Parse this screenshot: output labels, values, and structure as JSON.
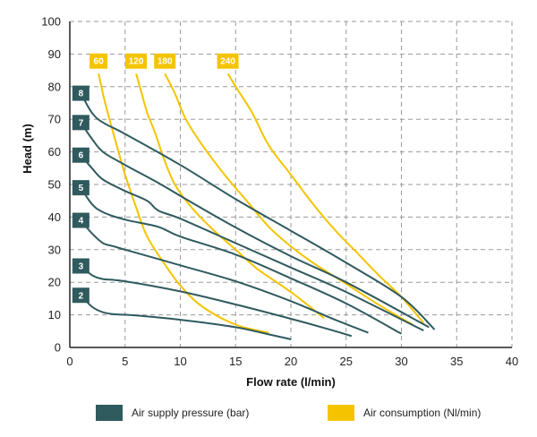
{
  "chart_data": {
    "type": "line",
    "title": "",
    "xlabel": "Flow rate (l/min)",
    "ylabel": "Head (m)",
    "xlim": [
      0,
      40
    ],
    "ylim": [
      0,
      100
    ],
    "xticks": [
      0,
      5,
      10,
      15,
      20,
      25,
      30,
      35,
      40
    ],
    "yticks": [
      0,
      10,
      20,
      30,
      40,
      50,
      60,
      70,
      80,
      90,
      100
    ],
    "grid": true,
    "grid_style": "dashed",
    "legend_position": "bottom",
    "colors": {
      "pressure": "#2f5a5e",
      "consumption": "#f5c400"
    },
    "legend": [
      {
        "label": "Air supply pressure (bar)",
        "color": "#2f5a5e"
      },
      {
        "label": "Air consumption (Nl/min)",
        "color": "#f5c400"
      }
    ],
    "pressure_series": [
      {
        "label": "2",
        "points": [
          [
            1,
            16
          ],
          [
            2,
            12.5
          ],
          [
            3,
            10.8
          ],
          [
            4,
            10.2
          ],
          [
            6,
            9.8
          ],
          [
            10,
            8.5
          ],
          [
            15,
            6.2
          ],
          [
            18,
            4
          ],
          [
            20,
            2.5
          ]
        ]
      },
      {
        "label": "3",
        "points": [
          [
            1,
            25
          ],
          [
            2,
            22.2
          ],
          [
            3,
            21
          ],
          [
            5,
            20.3
          ],
          [
            10,
            17.2
          ],
          [
            15,
            13.2
          ],
          [
            20,
            8.8
          ],
          [
            23,
            6
          ],
          [
            25.5,
            3.5
          ]
        ]
      },
      {
        "label": "4",
        "points": [
          [
            1,
            39
          ],
          [
            2,
            35
          ],
          [
            3,
            32
          ],
          [
            4,
            31
          ],
          [
            5,
            30
          ],
          [
            10,
            25.2
          ],
          [
            15,
            20.3
          ],
          [
            20,
            14.2
          ],
          [
            24,
            8.5
          ],
          [
            27,
            4.5
          ]
        ]
      },
      {
        "label": "5",
        "points": [
          [
            1,
            49
          ],
          [
            2,
            44
          ],
          [
            3,
            41.5
          ],
          [
            5,
            39.2
          ],
          [
            8,
            37
          ],
          [
            10,
            34
          ],
          [
            15,
            28.5
          ],
          [
            20,
            21.2
          ],
          [
            25,
            13.5
          ],
          [
            30,
            4.2
          ]
        ]
      },
      {
        "label": "6",
        "points": [
          [
            1,
            59
          ],
          [
            2,
            55
          ],
          [
            3,
            51.5
          ],
          [
            5,
            48
          ],
          [
            7,
            45
          ],
          [
            8,
            42
          ],
          [
            10,
            39.5
          ],
          [
            15,
            32
          ],
          [
            20,
            24.5
          ],
          [
            25,
            17
          ],
          [
            32,
            5.2
          ]
        ]
      },
      {
        "label": "7",
        "points": [
          [
            1,
            69
          ],
          [
            2,
            64
          ],
          [
            3,
            60
          ],
          [
            5,
            56
          ],
          [
            8,
            50.5
          ],
          [
            10,
            46.5
          ],
          [
            15,
            36.8
          ],
          [
            20,
            28
          ],
          [
            25,
            20
          ],
          [
            32.5,
            6.2
          ]
        ]
      },
      {
        "label": "8",
        "points": [
          [
            1,
            78
          ],
          [
            2,
            72
          ],
          [
            3,
            69
          ],
          [
            5,
            65.5
          ],
          [
            10,
            56
          ],
          [
            15,
            45.5
          ],
          [
            20,
            35.8
          ],
          [
            25,
            26
          ],
          [
            30,
            15.5
          ],
          [
            33,
            5.5
          ]
        ]
      }
    ],
    "consumption_series": [
      {
        "label": "60",
        "points": [
          [
            2.6,
            84
          ],
          [
            3.2,
            75
          ],
          [
            4,
            65
          ],
          [
            5,
            53
          ],
          [
            6,
            43
          ],
          [
            7,
            34
          ],
          [
            8.5,
            26
          ],
          [
            10,
            19
          ],
          [
            12,
            12.5
          ],
          [
            15,
            7
          ],
          [
            18,
            4.5
          ]
        ]
      },
      {
        "label": "120",
        "points": [
          [
            6,
            84
          ],
          [
            6.5,
            78
          ],
          [
            7,
            72
          ],
          [
            7.7,
            66
          ],
          [
            8.5,
            58
          ],
          [
            9.5,
            50
          ],
          [
            11,
            43
          ],
          [
            13,
            36
          ],
          [
            15,
            30
          ],
          [
            17,
            24
          ],
          [
            20,
            17
          ],
          [
            23,
            9
          ]
        ]
      },
      {
        "label": "180",
        "points": [
          [
            8.6,
            84
          ],
          [
            9.5,
            78
          ],
          [
            10.5,
            70
          ],
          [
            12,
            62
          ],
          [
            14,
            53
          ],
          [
            16,
            45
          ],
          [
            18,
            37
          ],
          [
            20,
            31
          ],
          [
            22,
            26
          ],
          [
            25,
            19.5
          ],
          [
            28,
            13
          ],
          [
            31,
            7
          ]
        ]
      },
      {
        "label": "240",
        "points": [
          [
            14.3,
            84
          ],
          [
            15.2,
            79
          ],
          [
            16.5,
            72
          ],
          [
            18,
            62
          ],
          [
            20,
            53
          ],
          [
            22,
            44
          ],
          [
            24,
            36
          ],
          [
            26,
            29
          ],
          [
            28,
            22
          ],
          [
            30,
            15.5
          ],
          [
            32,
            7.5
          ]
        ]
      }
    ]
  }
}
